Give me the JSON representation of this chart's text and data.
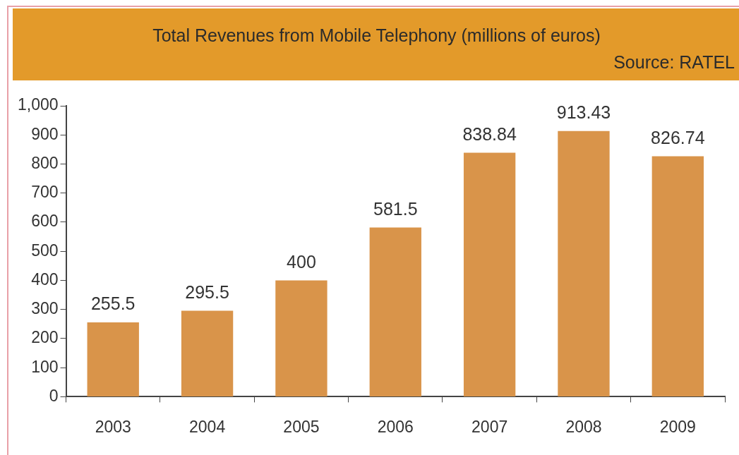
{
  "chart_data": {
    "type": "bar",
    "title": "Total Revenues from Mobile Telephony (millions of euros)",
    "annotations": [
      "Source: RATEL"
    ],
    "categories": [
      "2003",
      "2004",
      "2005",
      "2006",
      "2007",
      "2008",
      "2009"
    ],
    "values": [
      255.5,
      295.5,
      400,
      581.5,
      838.84,
      913.43,
      826.74
    ],
    "color": "#d9944a",
    "ylim": [
      0,
      1000
    ],
    "yticks": [
      0,
      100,
      200,
      300,
      400,
      500,
      600,
      700,
      800,
      900,
      {
        "value": 1000,
        "label": "1,000"
      }
    ],
    "grid": false,
    "legend": false,
    "data_labels": true
  }
}
